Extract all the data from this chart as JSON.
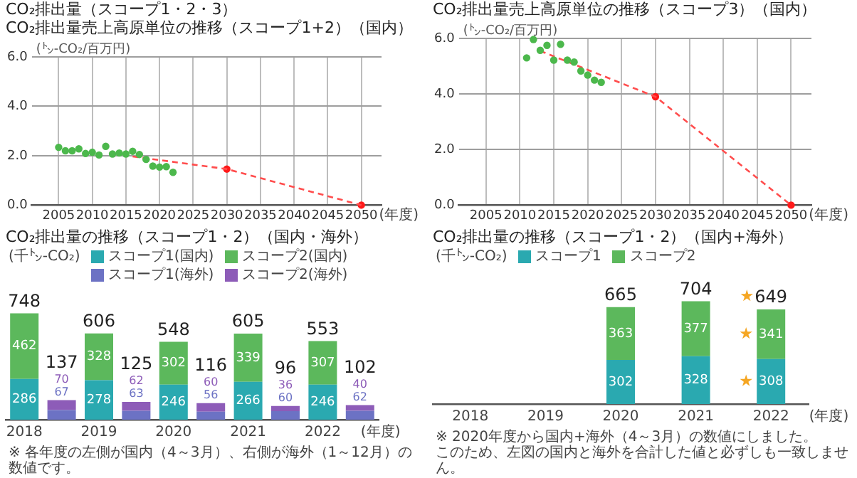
{
  "chart_data": [
    {
      "type": "scatter",
      "title": "CO₂排出量（スコープ1・2・3）",
      "subtitle": "CO₂排出量売上高原単位の推移（スコープ1+2）（国内）",
      "ylabel": "(㌧-CO₂/百万円)",
      "xlabel": "(年度)",
      "xlim": [
        2001,
        2053
      ],
      "xticks": [
        2005,
        2010,
        2015,
        2020,
        2025,
        2030,
        2035,
        2040,
        2045,
        2050
      ],
      "ylim": [
        0,
        6
      ],
      "yticks": [
        {
          "value": 0,
          "label": "0.0"
        },
        {
          "value": 2,
          "label": "2.0"
        },
        {
          "value": 4,
          "label": "4.0"
        },
        {
          "value": 6,
          "label": "6.0"
        }
      ],
      "grid": true,
      "series": [
        {
          "type": "scatter",
          "color": "#4cb84c",
          "marker": "circle",
          "x": [
            2005,
            2006,
            2007,
            2008,
            2009,
            2010,
            2011,
            2012,
            2013,
            2014,
            2015,
            2016,
            2017,
            2018,
            2019,
            2020,
            2021,
            2022
          ],
          "values": [
            2.34,
            2.2,
            2.2,
            2.28,
            2.09,
            2.14,
            2.03,
            2.38,
            2.07,
            2.11,
            2.07,
            2.18,
            2.05,
            1.85,
            1.58,
            1.54,
            1.56,
            1.33
          ]
        },
        {
          "type": "line",
          "color": "#ff4d4d",
          "marker": "none",
          "line_style": "dashed",
          "x": [
            2016,
            2030,
            2050
          ],
          "values": [
            1.97,
            1.46,
            0
          ]
        },
        {
          "type": "scatter",
          "color": "#ff1a1a",
          "marker": "circle",
          "x": [
            2030,
            2050
          ],
          "values": [
            1.46,
            0
          ]
        }
      ]
    },
    {
      "type": "scatter",
      "title": "CO₂排出量売上高原単位の推移（スコープ3）（国内）",
      "ylabel": "(㌧-CO₂/百万円)",
      "xlabel": "(年度)",
      "xlim": [
        2001,
        2053
      ],
      "xticks": [
        2005,
        2010,
        2015,
        2020,
        2025,
        2030,
        2035,
        2040,
        2045,
        2050
      ],
      "ylim": [
        0,
        6
      ],
      "yticks": [
        {
          "value": 0,
          "label": "0.0"
        },
        {
          "value": 2,
          "label": "2.0"
        },
        {
          "value": 4,
          "label": "4.0"
        },
        {
          "value": 6,
          "label": "6.0"
        }
      ],
      "grid": true,
      "series": [
        {
          "type": "scatter",
          "color": "#4cb84c",
          "marker": "circle",
          "x": [
            2011,
            2012,
            2013,
            2014,
            2015,
            2016,
            2017,
            2018,
            2019,
            2020,
            2021,
            2022
          ],
          "values": [
            5.3,
            5.96,
            5.57,
            5.75,
            5.22,
            5.79,
            5.22,
            5.15,
            4.83,
            4.68,
            4.5,
            4.42
          ]
        },
        {
          "type": "line",
          "color": "#ff4d4d",
          "marker": "none",
          "line_style": "dashed",
          "x": [
            2013,
            2030,
            2050
          ],
          "values": [
            5.55,
            3.9,
            0
          ]
        },
        {
          "type": "scatter",
          "color": "#ff1a1a",
          "marker": "circle",
          "x": [
            2030,
            2050
          ],
          "values": [
            3.9,
            0
          ]
        }
      ]
    },
    {
      "type": "bar",
      "title": "CO₂排出量の推移（スコープ1・2）（国内・海外）",
      "ylabel": "(千㌧-CO₂)",
      "xlabel": "(年度)",
      "categories": [
        "2018",
        null,
        "2019",
        null,
        "2020",
        null,
        "2021",
        null,
        "2022",
        null
      ],
      "stacked": true,
      "data_labels": true,
      "legend": "top",
      "tick_labels": "x",
      "series": [
        {
          "name": "スコープ1(国内)",
          "color": "#2aa9b0",
          "values": [
            286,
            null,
            278,
            null,
            246,
            null,
            266,
            null,
            246,
            null
          ]
        },
        {
          "name": "スコープ2(国内)",
          "color": "#5cb85c",
          "values": [
            462,
            null,
            328,
            null,
            302,
            null,
            339,
            null,
            307,
            null
          ]
        },
        {
          "name": "スコープ1(海外)",
          "color": "#6c72c4",
          "values": [
            null,
            67,
            null,
            63,
            null,
            56,
            null,
            60,
            null,
            62
          ]
        },
        {
          "name": "スコープ2(海外)",
          "color": "#8d5cb8",
          "values": [
            null,
            70,
            null,
            62,
            null,
            60,
            null,
            36,
            null,
            40
          ]
        }
      ],
      "totals": [
        "748",
        "137",
        "606",
        "125",
        "548",
        "116",
        "605",
        "96",
        "553",
        "102"
      ],
      "annotations": [
        "※ 各年度の左側が国内（4～3月）、右側が海外（1～12月）の数値です。"
      ]
    },
    {
      "type": "bar",
      "title": "CO₂排出量の推移（スコープ1・2）（国内+海外）",
      "ylabel": "(千㌧-CO₂)",
      "xlabel": "(年度)",
      "categories": [
        "2018",
        "2019",
        "2020",
        "2021",
        "2022"
      ],
      "stacked": true,
      "data_labels": true,
      "legend": "top left",
      "tick_labels": "x",
      "series": [
        {
          "name": "スコープ1",
          "color": "#2aa9b0",
          "values": [
            null,
            null,
            302,
            328,
            308
          ]
        },
        {
          "name": "スコープ2",
          "color": "#5cb85c",
          "values": [
            null,
            null,
            363,
            377,
            341
          ]
        }
      ],
      "totals": [
        null,
        null,
        "665",
        "704",
        "649"
      ],
      "annotations": [
        "※ 2020年度から国内+海外（4～3月）の数値にしました。",
        "このため、左図の国内と海外を合計した値と必ずしも一致しません。"
      ]
    }
  ]
}
